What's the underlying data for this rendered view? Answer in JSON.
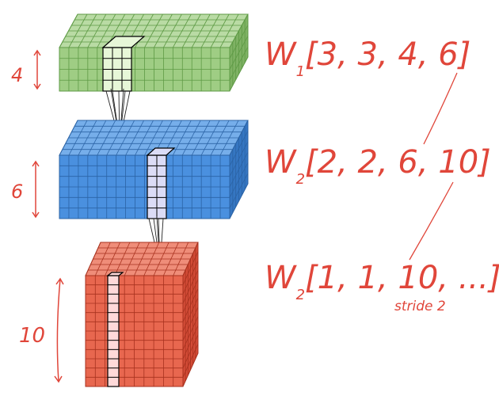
{
  "colors": {
    "green_block": "#8fc173",
    "green_front": "#9fcd84",
    "green_top": "#b9dba4",
    "green_side": "#7fb264",
    "blue_block": "#3f86d4",
    "blue_front": "#4a90df",
    "blue_top": "#76aeea",
    "blue_side": "#3576c2",
    "red_block": "#e25b45",
    "red_front": "#e8674f",
    "red_top": "#ef8d79",
    "red_side": "#d34c37",
    "highlight_green": "#e7f7d8",
    "highlight_blue": "#dcdcf6",
    "highlight_red": "#ffd9d9",
    "annotation": "#e0463a"
  },
  "layers": [
    {
      "name": "layer-1",
      "depth_label": "4",
      "weight_label": "W",
      "weight_sub": "1",
      "weight_shape": "[3, 3, 4, 6]"
    },
    {
      "name": "layer-2",
      "depth_label": "6",
      "weight_label": "W",
      "weight_sub": "2",
      "weight_shape": "[2, 2, 6, 10]"
    },
    {
      "name": "layer-3",
      "depth_label": "10",
      "weight_label": "W",
      "weight_sub": "2",
      "weight_shape": "[1, 1, 10, ...]"
    }
  ],
  "stride_note": "stride 2"
}
